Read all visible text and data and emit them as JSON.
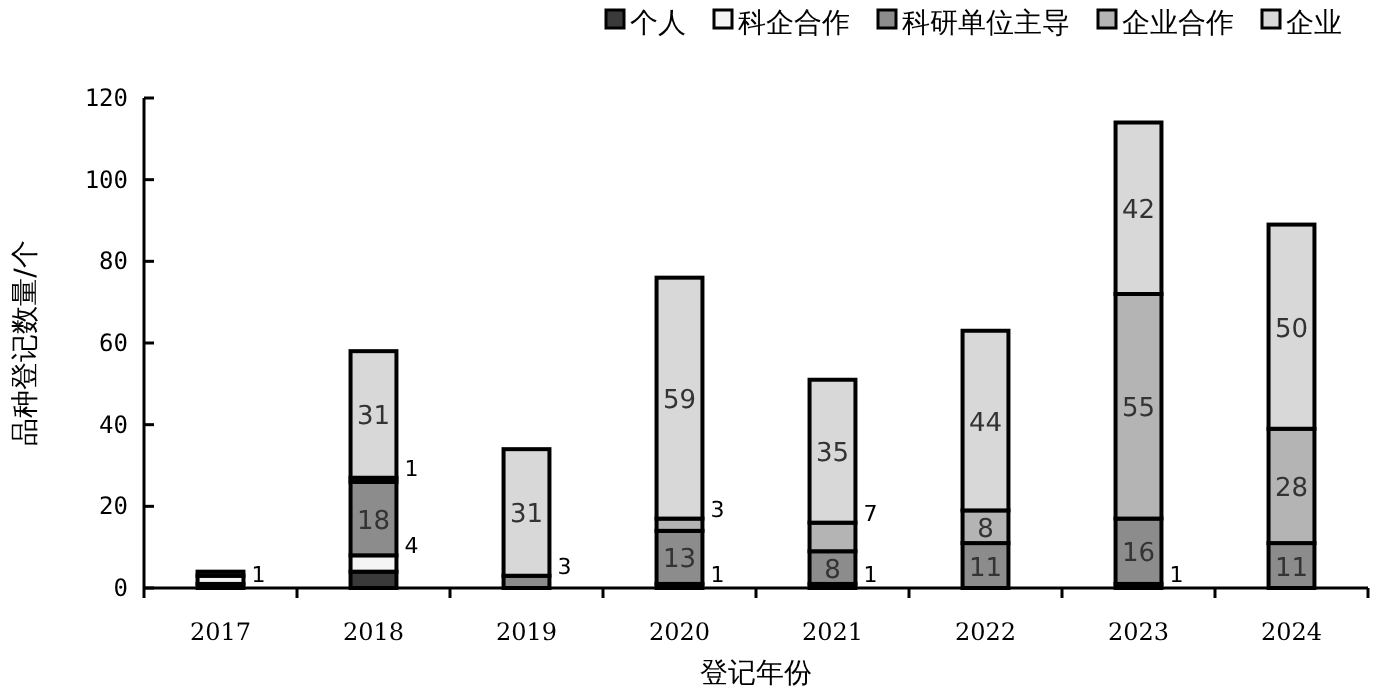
{
  "chart_data": {
    "type": "bar",
    "stacked": true,
    "xlabel": "登记年份",
    "ylabel": "品种登记数量/个",
    "categories": [
      "2017",
      "2018",
      "2019",
      "2020",
      "2021",
      "2022",
      "2023",
      "2024"
    ],
    "ylim": [
      0,
      120
    ],
    "yticks": [
      0,
      20,
      40,
      60,
      80,
      100,
      120
    ],
    "legend": "top right",
    "grid": false,
    "series": [
      {
        "name": "个人",
        "color": "#3a3a3a",
        "values": [
          1,
          4,
          null,
          1,
          1,
          null,
          1,
          null
        ],
        "value_labels": [
          "1",
          null,
          null,
          "1",
          "1",
          null,
          "1",
          null
        ]
      },
      {
        "name": "科企合作",
        "color": "#f4f4f4",
        "values": [
          2,
          4,
          null,
          null,
          null,
          null,
          null,
          null
        ],
        "value_labels": [
          null,
          "4",
          null,
          null,
          null,
          null,
          null,
          null
        ]
      },
      {
        "name": "科研单位主导",
        "color": "#8c8c8c",
        "values": [
          1,
          18,
          3,
          13,
          8,
          11,
          16,
          11
        ],
        "value_labels": [
          null,
          "18",
          "3",
          "13",
          "8",
          "11",
          "16",
          "11"
        ]
      },
      {
        "name": "企业合作",
        "color": "#b4b4b4",
        "values": [
          null,
          1,
          null,
          3,
          7,
          8,
          55,
          28
        ],
        "value_labels": [
          null,
          "1",
          null,
          "3",
          "7",
          "8",
          "55",
          "28"
        ]
      },
      {
        "name": "企业",
        "color": "#d8d8d8",
        "values": [
          null,
          31,
          31,
          59,
          35,
          44,
          42,
          50
        ],
        "value_labels": [
          null,
          "31",
          "31",
          "59",
          "35",
          "44",
          "42",
          "50"
        ]
      }
    ]
  }
}
